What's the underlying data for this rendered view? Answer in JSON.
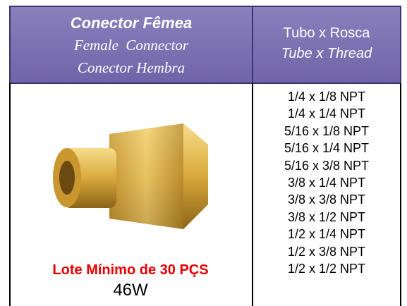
{
  "header": {
    "product": [
      "Conector Fêmea",
      "Female  Connector",
      "Conector Hembra"
    ],
    "spec": [
      "Tubo x Rosca",
      "Tube x Thread"
    ]
  },
  "sizes": [
    "1/4 x 1/8 NPT",
    "1/4 x 1/4 NPT",
    "5/16 x 1/8 NPT",
    "5/16 x 1/4 NPT",
    "5/16 x 3/8 NPT",
    "3/8 x 1/4 NPT",
    "3/8 x 3/8 NPT",
    "3/8 x 1/2 NPT",
    "1/2 x 1/4 NPT",
    "1/2 x 3/8 NPT",
    "1/2 x 1/2 NPT"
  ],
  "minimum_lot": "Lote Mínimo de 30 PÇS",
  "code": "46W"
}
